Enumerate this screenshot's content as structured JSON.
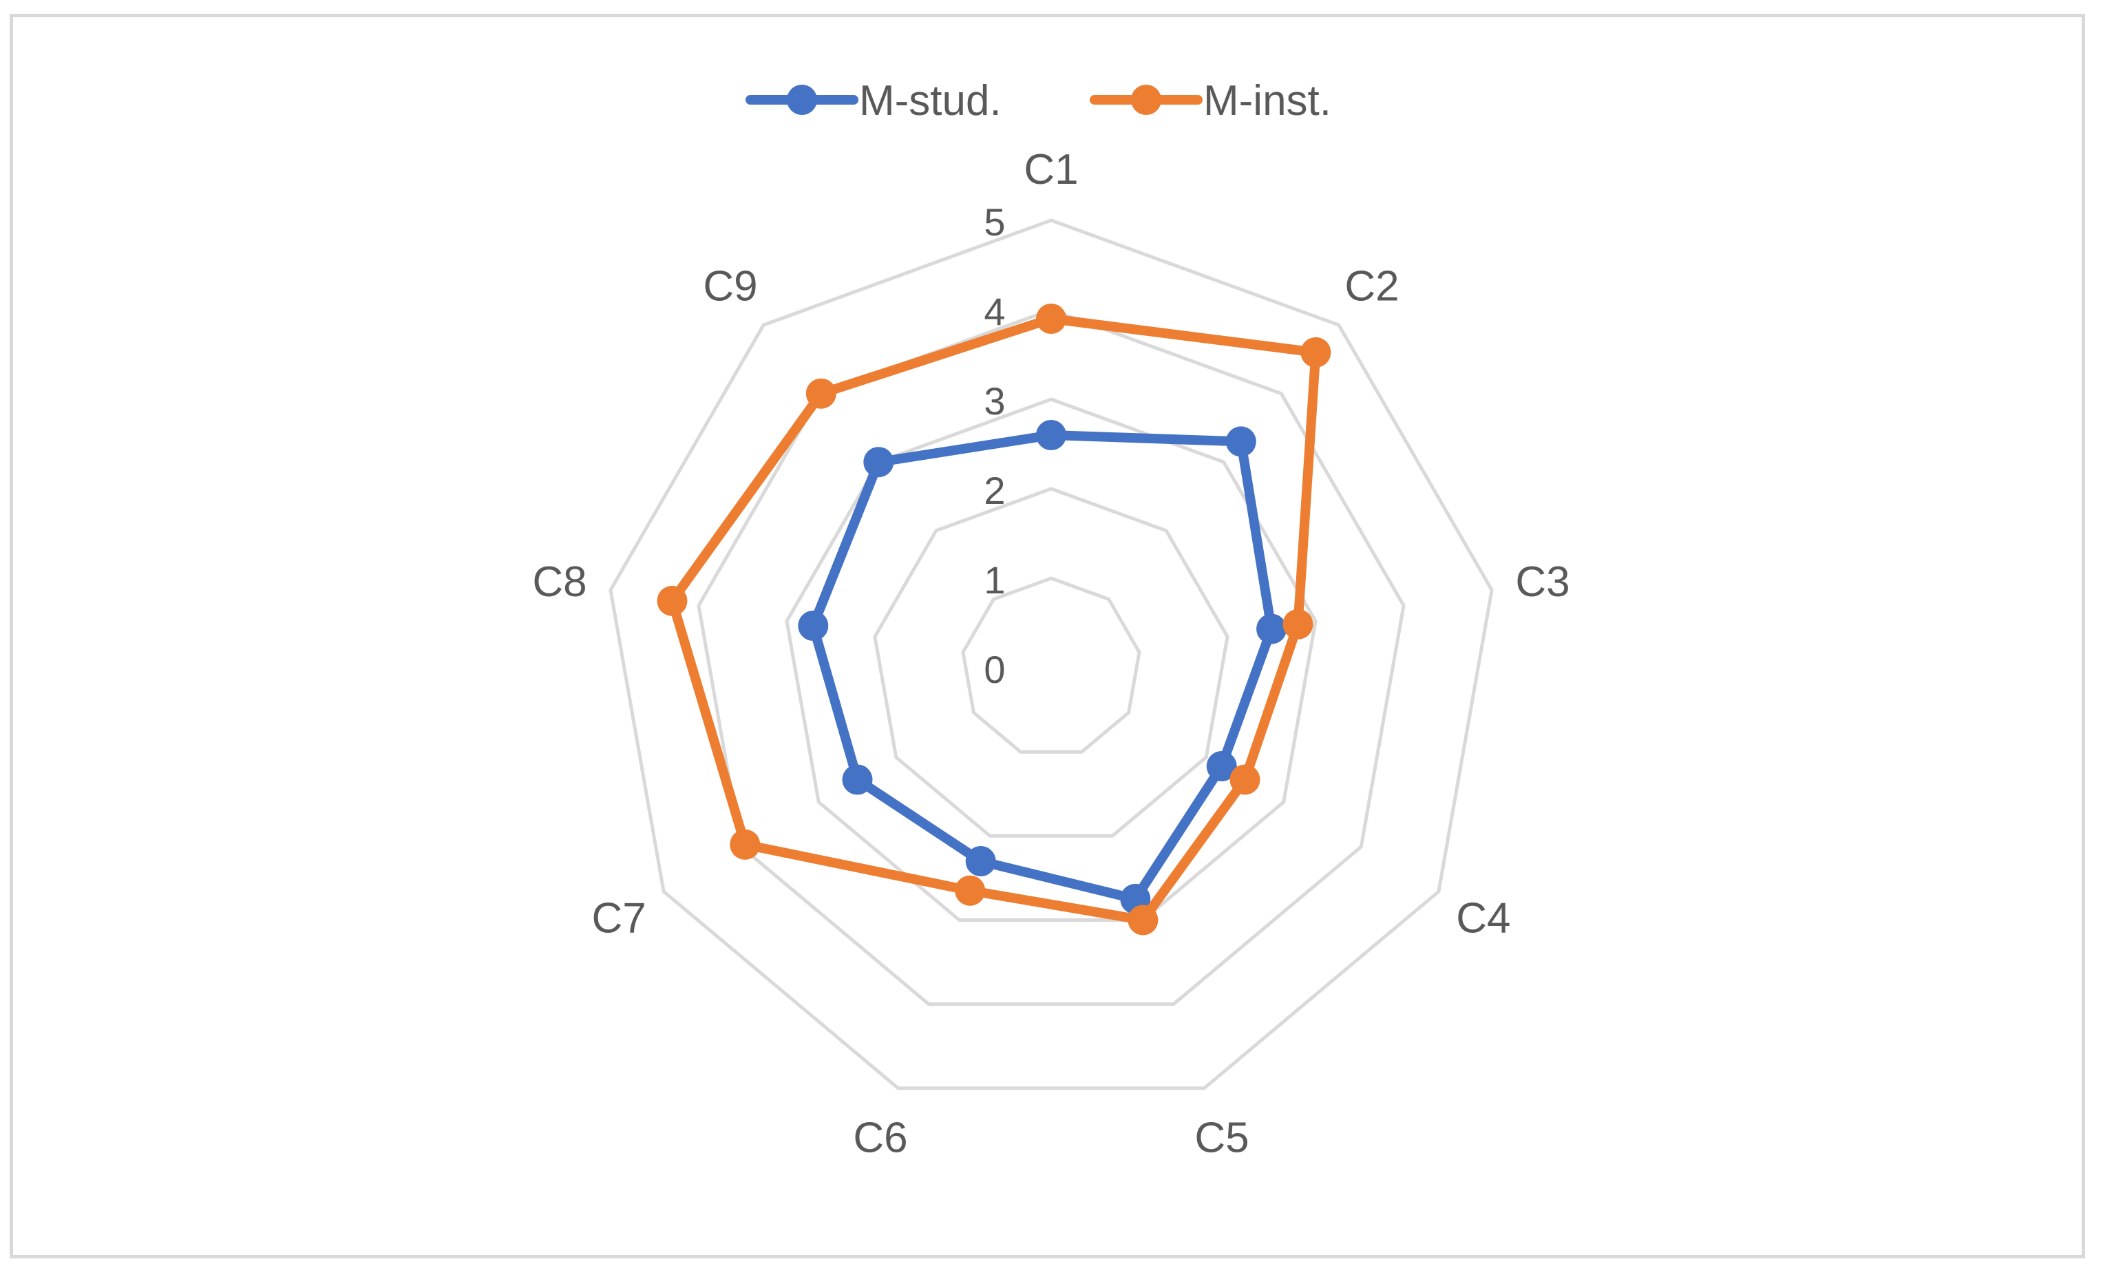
{
  "chart_data": {
    "type": "radar",
    "categories": [
      "C1",
      "C2",
      "C3",
      "C4",
      "C5",
      "C6",
      "C7",
      "C8",
      "C9"
    ],
    "axis_ticks": [
      "0",
      "1",
      "2",
      "3",
      "4",
      "5"
    ],
    "rlim": [
      0,
      5
    ],
    "grid": true,
    "legend_position": "top",
    "series": [
      {
        "name": "M-stud.",
        "color": "#4472c4",
        "values": [
          2.6,
          3.3,
          2.5,
          2.2,
          2.75,
          2.3,
          2.5,
          2.7,
          3.0
        ]
      },
      {
        "name": "M-inst.",
        "color": "#ed7d31",
        "values": [
          3.9,
          4.6,
          2.8,
          2.5,
          3.0,
          2.65,
          3.95,
          4.3,
          4.0
        ]
      }
    ]
  }
}
